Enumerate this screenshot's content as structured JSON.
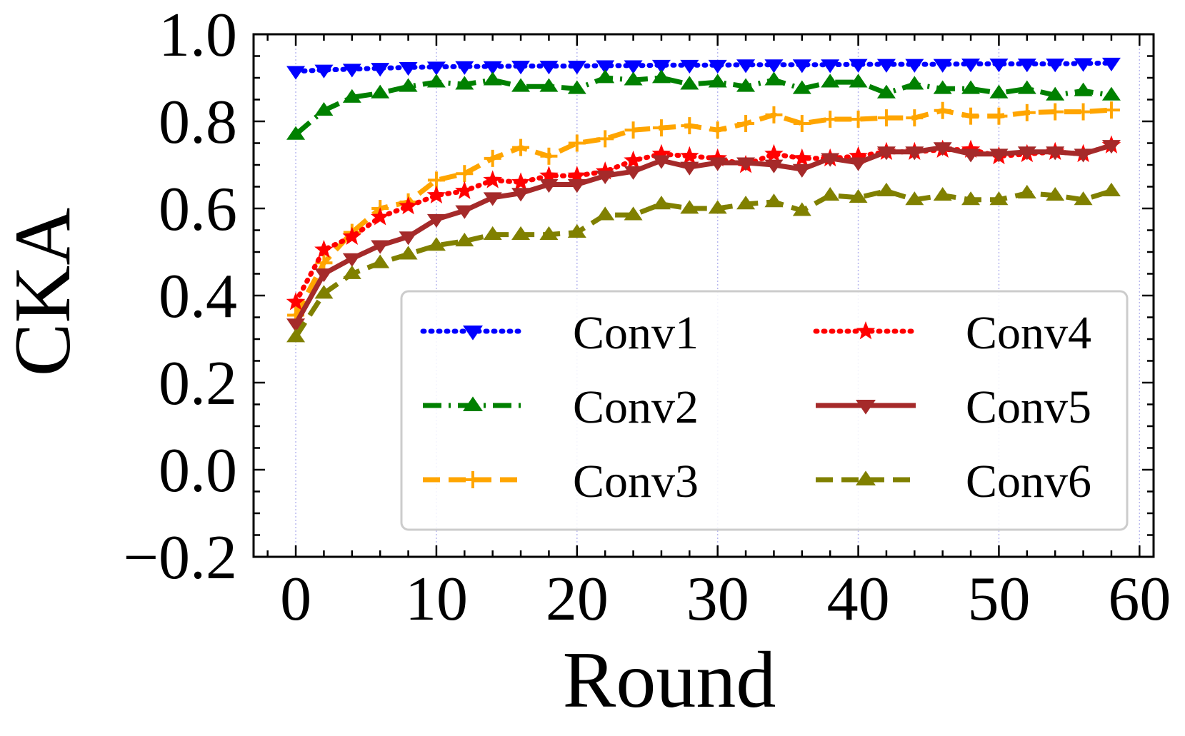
{
  "chart_data": {
    "type": "line",
    "title": "",
    "xlabel": "Round",
    "ylabel": "CKA",
    "xlim": [
      -3,
      61
    ],
    "ylim": [
      -0.2,
      1.0
    ],
    "xticks": [
      0,
      10,
      20,
      30,
      40,
      50,
      60
    ],
    "xtick_labels": [
      "0",
      "10",
      "20",
      "30",
      "40",
      "50",
      "60"
    ],
    "yticks": [
      -0.2,
      0.0,
      0.2,
      0.4,
      0.6,
      0.8,
      1.0
    ],
    "ytick_labels": [
      "−0.2",
      "0.0",
      "0.2",
      "0.4",
      "0.6",
      "0.8",
      "1.0"
    ],
    "grid": "vertical dotted",
    "legend_position": "lower-right",
    "x": [
      0,
      2,
      4,
      6,
      8,
      10,
      12,
      14,
      16,
      18,
      20,
      22,
      24,
      26,
      28,
      30,
      32,
      34,
      36,
      38,
      40,
      42,
      44,
      46,
      48,
      50,
      52,
      54,
      56,
      58
    ],
    "series": [
      {
        "name": "Conv1",
        "color": "#0000ff",
        "line_style": "dotted",
        "marker": "triangle-down",
        "values": [
          0.915,
          0.918,
          0.92,
          0.922,
          0.924,
          0.925,
          0.926,
          0.926,
          0.927,
          0.927,
          0.927,
          0.928,
          0.928,
          0.929,
          0.929,
          0.929,
          0.93,
          0.93,
          0.93,
          0.93,
          0.931,
          0.931,
          0.931,
          0.931,
          0.932,
          0.932,
          0.932,
          0.932,
          0.933,
          0.934
        ]
      },
      {
        "name": "Conv2",
        "color": "#008000",
        "line_style": "dash-dot",
        "marker": "triangle-up",
        "values": [
          0.77,
          0.825,
          0.855,
          0.865,
          0.88,
          0.89,
          0.885,
          0.895,
          0.88,
          0.88,
          0.875,
          0.9,
          0.895,
          0.9,
          0.885,
          0.89,
          0.88,
          0.895,
          0.875,
          0.89,
          0.89,
          0.865,
          0.885,
          0.875,
          0.875,
          0.865,
          0.875,
          0.86,
          0.87,
          0.86
        ]
      },
      {
        "name": "Conv3",
        "color": "#ffa500",
        "line_style": "dashed",
        "marker": "plus",
        "values": [
          0.355,
          0.475,
          0.545,
          0.6,
          0.615,
          0.665,
          0.68,
          0.715,
          0.74,
          0.72,
          0.75,
          0.76,
          0.78,
          0.785,
          0.79,
          0.78,
          0.795,
          0.815,
          0.795,
          0.805,
          0.805,
          0.808,
          0.808,
          0.825,
          0.812,
          0.812,
          0.82,
          0.822,
          0.822,
          0.826
        ]
      },
      {
        "name": "Conv4",
        "color": "#ff0000",
        "line_style": "dotted",
        "marker": "star",
        "values": [
          0.385,
          0.505,
          0.535,
          0.58,
          0.605,
          0.63,
          0.64,
          0.665,
          0.66,
          0.675,
          0.675,
          0.685,
          0.71,
          0.725,
          0.72,
          0.715,
          0.7,
          0.725,
          0.715,
          0.715,
          0.72,
          0.73,
          0.73,
          0.735,
          0.735,
          0.72,
          0.725,
          0.73,
          0.725,
          0.745
        ]
      },
      {
        "name": "Conv5",
        "color": "#a52a2a",
        "line_style": "solid",
        "marker": "triangle-down",
        "values": [
          0.335,
          0.45,
          0.485,
          0.515,
          0.535,
          0.575,
          0.595,
          0.625,
          0.635,
          0.655,
          0.655,
          0.675,
          0.685,
          0.71,
          0.695,
          0.705,
          0.705,
          0.7,
          0.69,
          0.715,
          0.705,
          0.73,
          0.73,
          0.74,
          0.725,
          0.725,
          0.73,
          0.73,
          0.725,
          0.745
        ]
      },
      {
        "name": "Conv6",
        "color": "#808000",
        "line_style": "dashed",
        "marker": "triangle-up",
        "values": [
          0.305,
          0.405,
          0.45,
          0.475,
          0.495,
          0.515,
          0.525,
          0.54,
          0.54,
          0.54,
          0.545,
          0.585,
          0.585,
          0.61,
          0.6,
          0.6,
          0.61,
          0.615,
          0.595,
          0.63,
          0.625,
          0.64,
          0.62,
          0.63,
          0.62,
          0.62,
          0.635,
          0.63,
          0.62,
          0.64
        ]
      }
    ]
  }
}
